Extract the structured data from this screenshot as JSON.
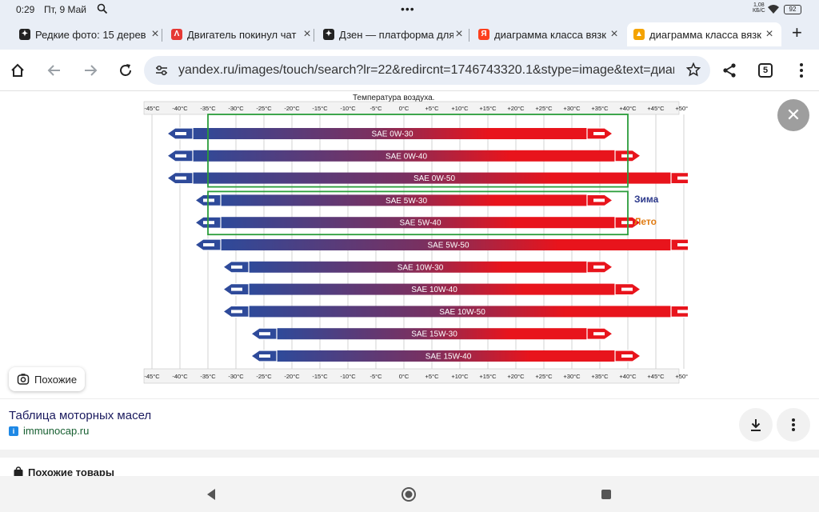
{
  "status": {
    "time": "0:29",
    "date": "Пт, 9 Май",
    "net_speed": "1,08",
    "net_unit": "КБ/С",
    "battery": "92"
  },
  "tabs": [
    {
      "title": "Редкие фото: 15 дерев",
      "favicon": "dzen-icon",
      "color": "#222222",
      "glyph": "✦"
    },
    {
      "title": "Двигатель покинул чат",
      "favicon": "drive2-icon",
      "color": "#e53935",
      "glyph": "Λ"
    },
    {
      "title": "Дзен — платформа для",
      "favicon": "dzen-icon",
      "color": "#222222",
      "glyph": "✦"
    },
    {
      "title": "диаграмма класса вязк",
      "favicon": "yandex-icon",
      "color": "#fc3f1d",
      "glyph": "Я"
    },
    {
      "title": "диаграмма класса вязк",
      "favicon": "image-icon",
      "color": "#f4a300",
      "glyph": "▲"
    }
  ],
  "active_tab": 4,
  "toolbar": {
    "url": "yandex.ru/images/touch/search?lr=22&redircnt=1746743320.1&stype=image&text=диаграмма",
    "tab_count": "5"
  },
  "result": {
    "similar_label": "Похожие",
    "title": "Таблица моторных масел",
    "source": "immunocap.ru",
    "products_label": "Похожие товары"
  },
  "chart_data": {
    "type": "bar",
    "title": "Температура воздуха.",
    "x_ticks": [
      "-45°C",
      "-40°C",
      "-35°C",
      "-30°C",
      "-25°C",
      "-20°C",
      "-15°C",
      "-10°C",
      "-5°C",
      "0°C",
      "+5°C",
      "+10°C",
      "+15°C",
      "+20°C",
      "+25°C",
      "+30°C",
      "+35°C",
      "+40°C",
      "+45°C",
      "+50°C"
    ],
    "xlim": [
      -45,
      50
    ],
    "unit": "°C",
    "series": [
      {
        "name": "SAE 0W-30",
        "min": -40,
        "max": 35
      },
      {
        "name": "SAE 0W-40",
        "min": -40,
        "max": 40
      },
      {
        "name": "SAE 0W-50",
        "min": -40,
        "max": 50
      },
      {
        "name": "SAE 5W-30",
        "min": -35,
        "max": 35
      },
      {
        "name": "SAE 5W-40",
        "min": -35,
        "max": 40
      },
      {
        "name": "SAE 5W-50",
        "min": -35,
        "max": 50
      },
      {
        "name": "SAE 10W-30",
        "min": -30,
        "max": 35
      },
      {
        "name": "SAE 10W-40",
        "min": -30,
        "max": 40
      },
      {
        "name": "SAE 10W-50",
        "min": -30,
        "max": 50
      },
      {
        "name": "SAE 15W-30",
        "min": -25,
        "max": 35
      },
      {
        "name": "SAE 15W-40",
        "min": -25,
        "max": 40
      }
    ],
    "groups": [
      {
        "label": "Зима",
        "color": "#2d3a8c",
        "from": -35,
        "to": 40,
        "rows": [
          0,
          2
        ]
      },
      {
        "label": "Лето",
        "color": "#e07b12",
        "from": -35,
        "to": 40,
        "rows": [
          3,
          4
        ]
      }
    ],
    "colors": {
      "cold": "#2e4a9a",
      "mid": "#7a3060",
      "hot": "#e8141c",
      "frame": "#2a9d3a"
    },
    "grid": true
  }
}
